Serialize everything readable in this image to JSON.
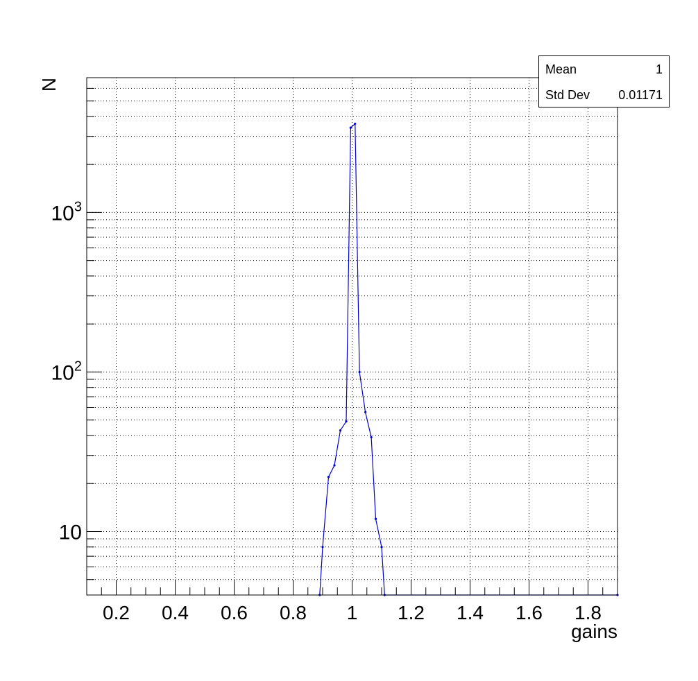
{
  "chart_data": {
    "type": "line",
    "xlabel": "gains",
    "ylabel": "N",
    "xlim": [
      0.1,
      1.9
    ],
    "ylim": [
      4,
      7000
    ],
    "yscale": "log",
    "grid": true,
    "x_ticks": [
      "0.2",
      "0.4",
      "0.6",
      "0.8",
      "1",
      "1.2",
      "1.4",
      "1.6",
      "1.8"
    ],
    "y_ticks": [
      {
        "value": 10,
        "base": "10",
        "exp": ""
      },
      {
        "value": 100,
        "base": "10",
        "exp": "2"
      },
      {
        "value": 1000,
        "base": "10",
        "exp": "3"
      }
    ],
    "series": [
      {
        "color": "#0000cc",
        "points": [
          {
            "x": 0.89,
            "y": 4
          },
          {
            "x": 0.9,
            "y": 8
          },
          {
            "x": 0.92,
            "y": 22
          },
          {
            "x": 0.94,
            "y": 26
          },
          {
            "x": 0.96,
            "y": 43
          },
          {
            "x": 0.98,
            "y": 49
          },
          {
            "x": 0.995,
            "y": 3400
          },
          {
            "x": 1.01,
            "y": 3600
          },
          {
            "x": 1.025,
            "y": 100
          },
          {
            "x": 1.045,
            "y": 56
          },
          {
            "x": 1.065,
            "y": 39
          },
          {
            "x": 1.08,
            "y": 12
          },
          {
            "x": 1.1,
            "y": 8
          },
          {
            "x": 1.11,
            "y": 4
          },
          {
            "x": 1.9,
            "y": 4
          }
        ]
      }
    ],
    "stats": {
      "mean_label": "Mean",
      "mean_value": "1",
      "std_label": "Std Dev",
      "std_value": "0.01171"
    }
  }
}
